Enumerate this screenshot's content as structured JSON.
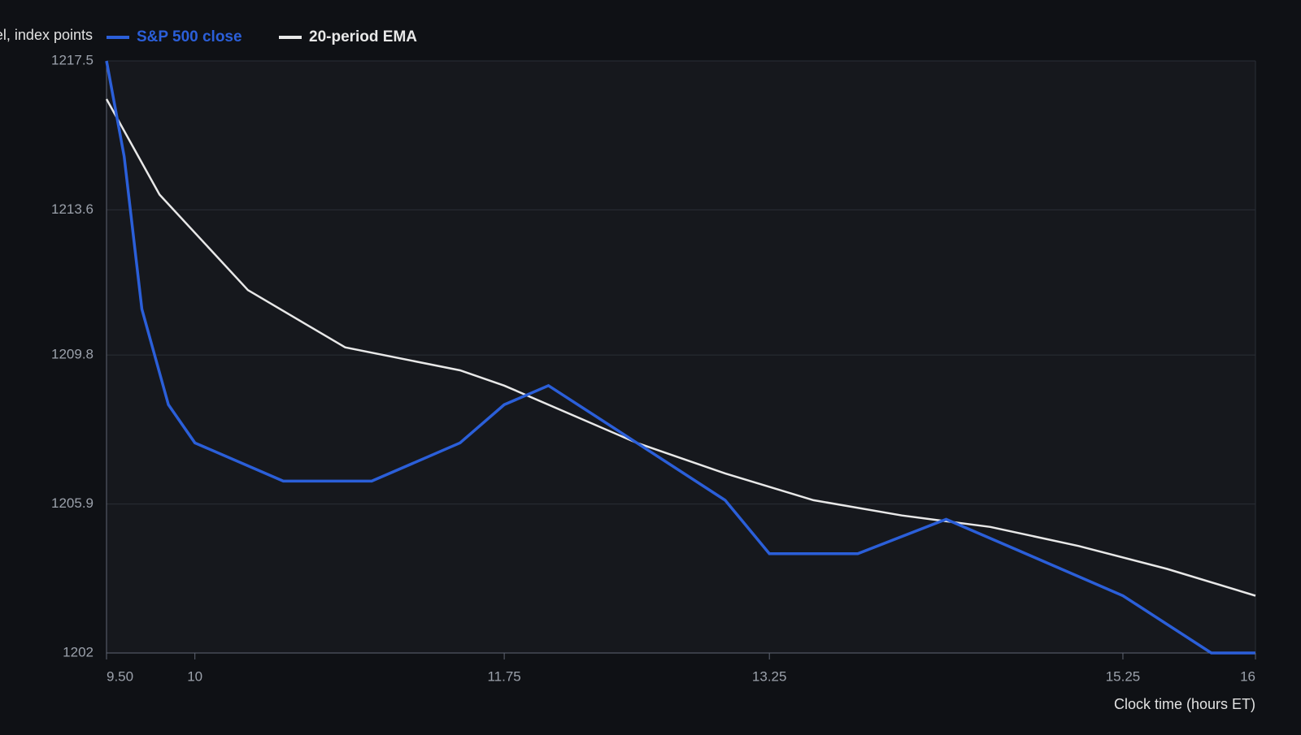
{
  "chart_data": {
    "type": "line",
    "ylabel": "Level, index points",
    "xlabel": "Clock time (hours ET)",
    "xlim": [
      9.5,
      16
    ],
    "ylim": [
      1202,
      1217.5
    ],
    "x_ticks": [
      9.5,
      10,
      11.75,
      13.25,
      15.25,
      16
    ],
    "x_tick_labels": [
      "9.50",
      "10",
      "11.75",
      "13.25",
      "15.25",
      "16"
    ],
    "y_ticks": [
      1202,
      1205.9,
      1209.8,
      1213.6,
      1217.5
    ],
    "y_tick_labels": [
      "1202",
      "1205.9",
      "1209.8",
      "1213.6",
      "1217.5"
    ],
    "grid": true,
    "legend_position": "top-left",
    "series": [
      {
        "name": "S&P 500 close",
        "color": "#2b5fd9",
        "points": [
          [
            9.5,
            1217.5
          ],
          [
            9.6,
            1215.0
          ],
          [
            9.7,
            1211.0
          ],
          [
            9.85,
            1208.5
          ],
          [
            10.0,
            1207.5
          ],
          [
            10.5,
            1206.5
          ],
          [
            11.0,
            1206.5
          ],
          [
            11.5,
            1207.5
          ],
          [
            11.75,
            1208.5
          ],
          [
            12.0,
            1209.0
          ],
          [
            12.5,
            1207.5
          ],
          [
            13.0,
            1206.0
          ],
          [
            13.25,
            1204.6
          ],
          [
            13.75,
            1204.6
          ],
          [
            14.25,
            1205.5
          ],
          [
            14.75,
            1204.5
          ],
          [
            15.25,
            1203.5
          ],
          [
            15.75,
            1202.0
          ],
          [
            16.0,
            1202.0
          ]
        ]
      },
      {
        "name": "20-period EMA",
        "color": "#e8e8e8",
        "points": [
          [
            9.5,
            1216.5
          ],
          [
            9.8,
            1214.0
          ],
          [
            10.3,
            1211.5
          ],
          [
            10.85,
            1210.0
          ],
          [
            11.5,
            1209.4
          ],
          [
            11.75,
            1209.0
          ],
          [
            12.5,
            1207.5
          ],
          [
            13.0,
            1206.7
          ],
          [
            13.5,
            1206.0
          ],
          [
            14.0,
            1205.6
          ],
          [
            14.5,
            1205.3
          ],
          [
            15.0,
            1204.8
          ],
          [
            15.5,
            1204.2
          ],
          [
            16.0,
            1203.5
          ]
        ]
      }
    ]
  }
}
